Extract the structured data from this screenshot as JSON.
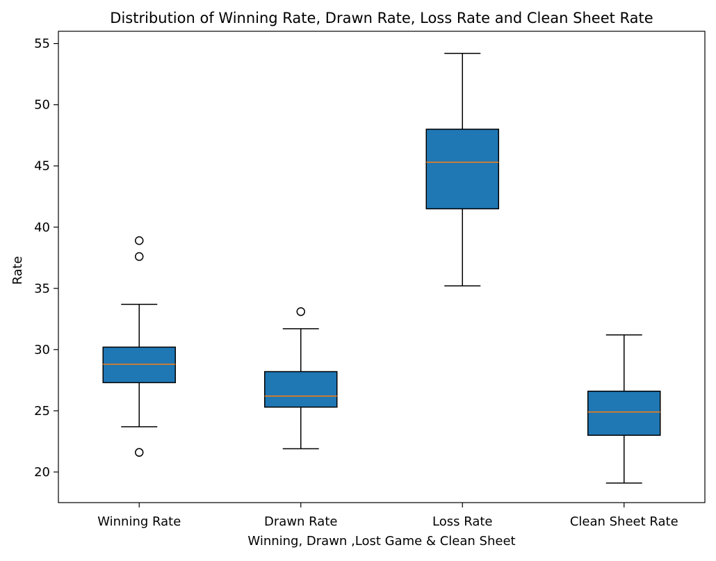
{
  "chart_data": {
    "type": "box",
    "title": "Distribution of Winning Rate, Drawn Rate, Loss Rate and Clean Sheet Rate",
    "xlabel": "Winning, Drawn ,Lost Game & Clean Sheet",
    "ylabel": "Rate",
    "ylim": [
      17.5,
      56
    ],
    "yticks": [
      20,
      25,
      30,
      35,
      40,
      45,
      50,
      55
    ],
    "grid": false,
    "colors": {
      "box_fill": "#1f77b4",
      "median": "#ff7f0e",
      "lines": "#000000"
    },
    "categories": [
      "Winning Rate",
      "Drawn Rate",
      "Loss Rate",
      "Clean Sheet Rate"
    ],
    "boxes": [
      {
        "label": "Winning Rate",
        "whisker_low": 23.7,
        "q1": 27.3,
        "median": 28.8,
        "q3": 30.2,
        "whisker_high": 33.7,
        "outliers": [
          21.6,
          37.6,
          38.9
        ]
      },
      {
        "label": "Drawn Rate",
        "whisker_low": 21.9,
        "q1": 25.3,
        "median": 26.2,
        "q3": 28.2,
        "whisker_high": 31.7,
        "outliers": [
          33.1
        ]
      },
      {
        "label": "Loss Rate",
        "whisker_low": 35.2,
        "q1": 41.5,
        "median": 45.3,
        "q3": 48.0,
        "whisker_high": 54.2,
        "outliers": []
      },
      {
        "label": "Clean Sheet Rate",
        "whisker_low": 19.1,
        "q1": 23.0,
        "median": 24.9,
        "q3": 26.6,
        "whisker_high": 31.2,
        "outliers": []
      }
    ]
  }
}
